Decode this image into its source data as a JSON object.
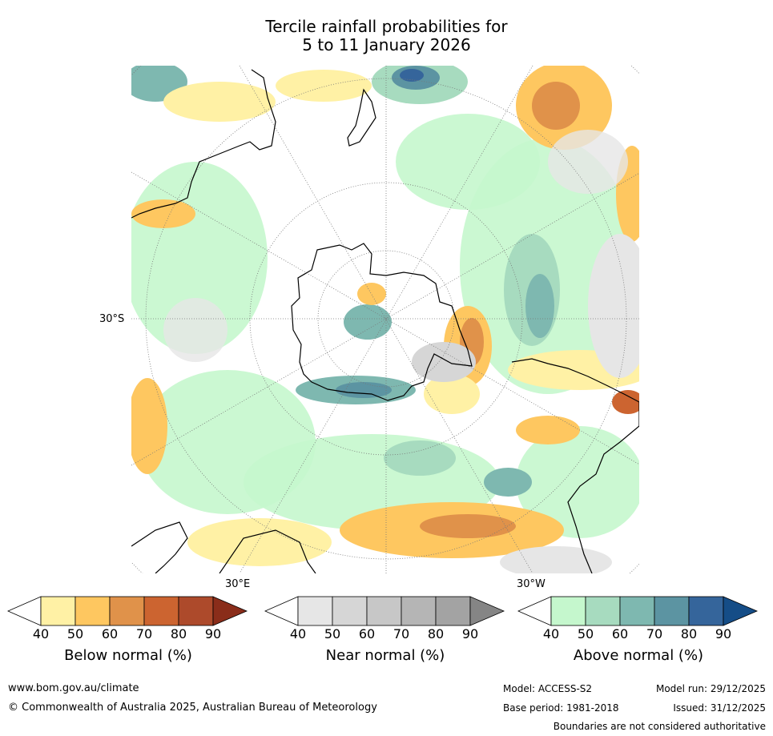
{
  "title": {
    "line1": "Tercile rainfall probabilities for",
    "line2": "5 to 11 January 2026"
  },
  "map": {
    "projection": "south-polar",
    "labels": {
      "lat_30s": "30°S",
      "lon_30e": "30°E",
      "lon_30w": "30°W"
    }
  },
  "colorbars": [
    {
      "name": "below",
      "label": "Below normal (%)",
      "ticks": [
        "40",
        "50",
        "60",
        "70",
        "80",
        "90"
      ],
      "colors": [
        "#fff1a5",
        "#fec760",
        "#e0924a",
        "#cc6430",
        "#ad4a2b",
        "#8a2d1a"
      ]
    },
    {
      "name": "near",
      "label": "Near normal (%)",
      "ticks": [
        "40",
        "50",
        "60",
        "70",
        "80",
        "90"
      ],
      "colors": [
        "#e6e6e6",
        "#d6d6d6",
        "#c7c7c7",
        "#b5b5b5",
        "#a3a3a3",
        "#858585"
      ]
    },
    {
      "name": "above",
      "label": "Above normal (%)",
      "ticks": [
        "40",
        "50",
        "60",
        "70",
        "80",
        "90"
      ],
      "colors": [
        "#c5f7cd",
        "#a7dbbf",
        "#7eb8b0",
        "#5c94a2",
        "#35659b",
        "#154d87"
      ]
    }
  ],
  "footer": {
    "url": "www.bom.gov.au/climate",
    "copyright": "© Commonwealth of Australia 2025, Australian Bureau of Meteorology",
    "model": "Model: ACCESS-S2",
    "model_run": "Model run: 29/12/2025",
    "base_period": "Base period: 1981-2018",
    "issued": "Issued: 31/12/2025",
    "disclaimer": "Boundaries are not considered authoritative"
  }
}
